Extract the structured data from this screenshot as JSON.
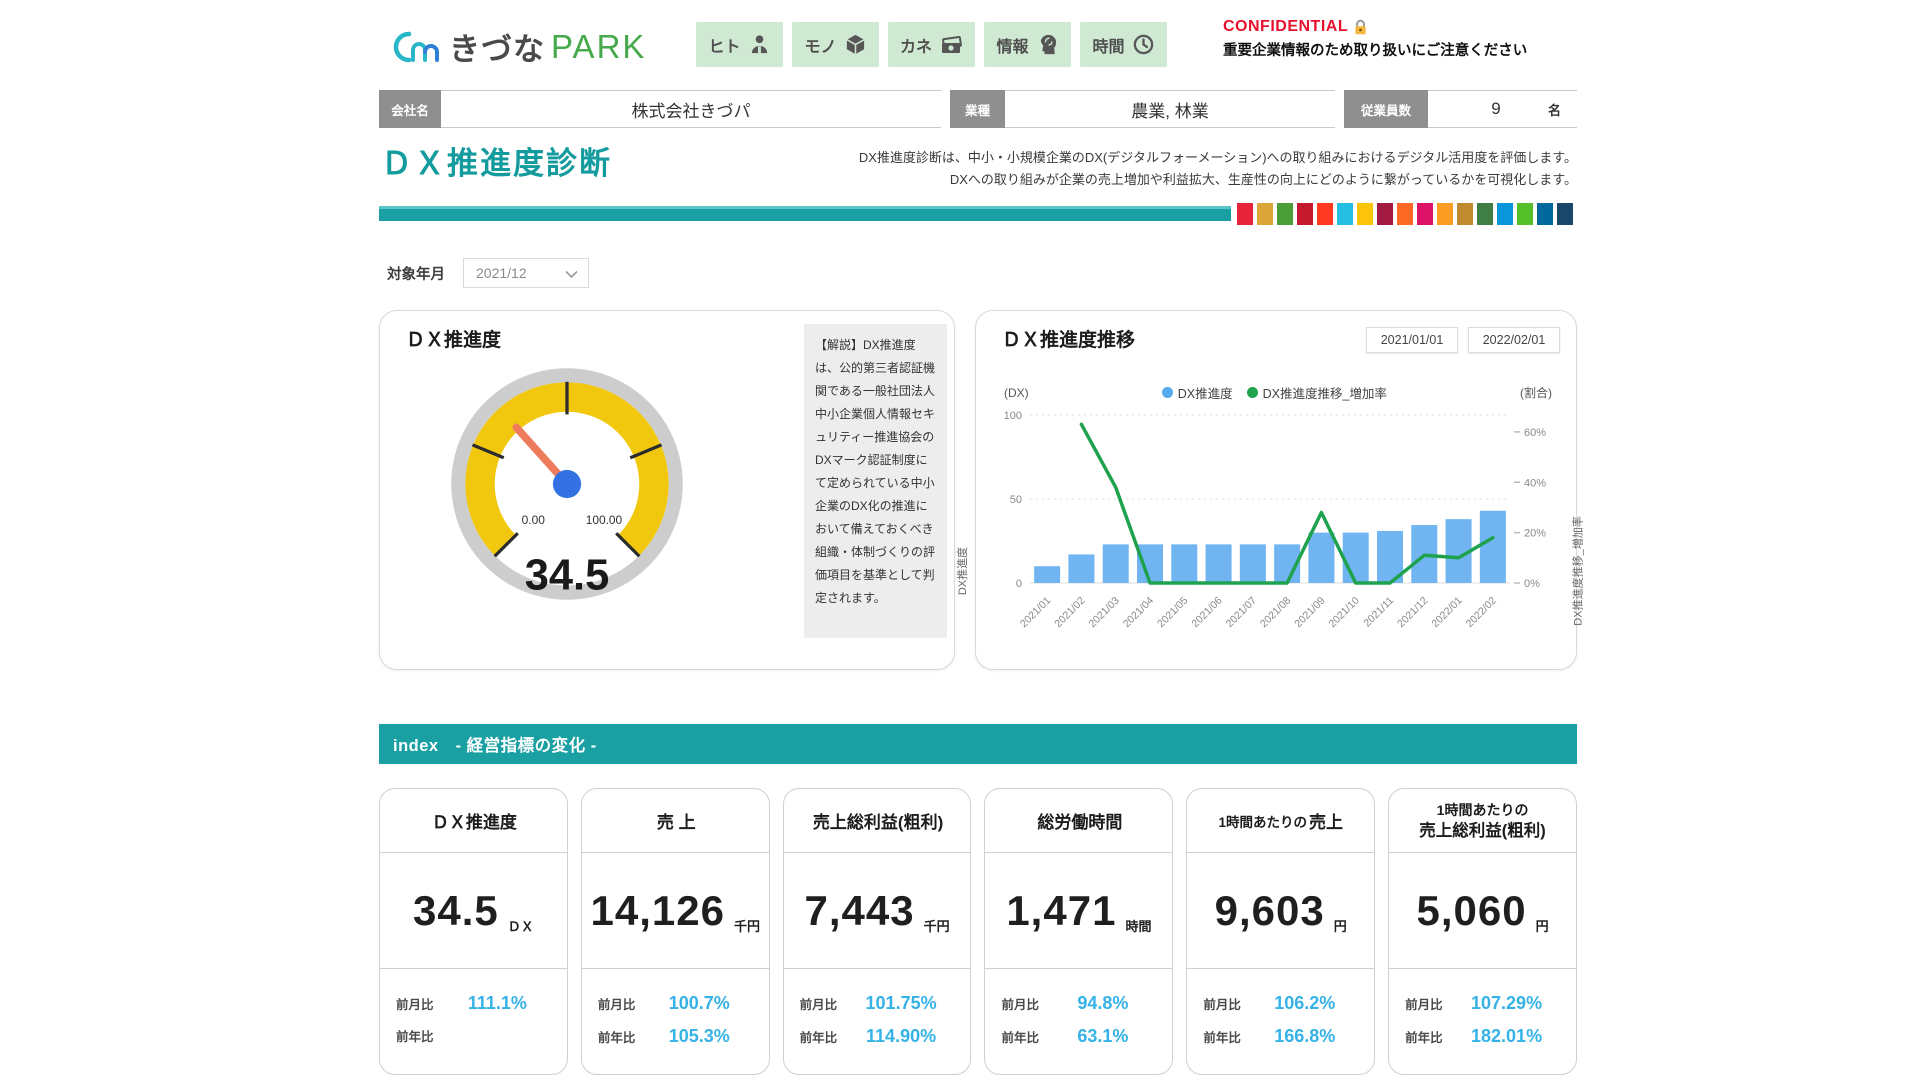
{
  "header": {
    "logo_kizuna": "きづな",
    "logo_park": "PARK",
    "nav_buttons": [
      {
        "label": "ヒト"
      },
      {
        "label": "モノ"
      },
      {
        "label": "カネ"
      },
      {
        "label": "情報"
      },
      {
        "label": "時間"
      }
    ],
    "confidential_title": "CONFIDENTIAL",
    "confidential_note": "重要企業情報のため取り扱いにご注意ください"
  },
  "company_bar": {
    "company_label": "会社名",
    "company_value": "株式会社きづパ",
    "industry_label": "業種",
    "industry_value": "農業, 林業",
    "employees_label": "従業員数",
    "employees_value": "9",
    "employees_unit": "名"
  },
  "page": {
    "title": "ＤＸ推進度診断",
    "description_line1": "DX推進度診断は、中小・小規模企業のDX(デジタルフォーメーション)への取り組みにおけるデジタル活用度を評価します。",
    "description_line2": "DXへの取り組みが企業の売上増加や利益拡大、生産性の向上にどのように繋がっているかを可視化します。"
  },
  "filter": {
    "label": "対象年月",
    "value": "2021/12"
  },
  "gauge_card": {
    "title": "ＤＸ推進度",
    "min": "0.00",
    "max": "100.00",
    "value": "34.5",
    "explanation": "【解説】DX推進度は、公的第三者認証機関である一般社団法人中小企業個人情報セキュリティー推進協会のDXマーク認証制度にて定められている中小企業のDX化の推進において備えておくべき組織・体制づくりの評価項目を基準として判定されます。"
  },
  "trend_card": {
    "title": "ＤＸ推進度推移",
    "date_from": "2021/01/01",
    "date_to": "2022/02/01",
    "left_axis_unit": "(DX)",
    "right_axis_unit": "(割合)",
    "left_axis_title": "DX推進度",
    "right_axis_title": "DX推進度推移_増加率"
  },
  "chart_data": {
    "type": "combo",
    "title": "ＤＸ推進度推移",
    "categories": [
      "2021/01",
      "2021/02",
      "2021/03",
      "2021/04",
      "2021/05",
      "2021/06",
      "2021/07",
      "2021/08",
      "2021/09",
      "2021/10",
      "2021/11",
      "2021/12",
      "2022/01",
      "2022/02"
    ],
    "series": [
      {
        "name": "DX推進度",
        "type": "bar",
        "axis": "left",
        "color": "#70b5f1",
        "values": [
          10,
          17,
          23,
          23,
          23,
          23,
          23,
          23,
          30,
          30,
          31,
          34.5,
          38,
          43
        ]
      },
      {
        "name": "DX推進度推移_増加率",
        "type": "line",
        "axis": "right",
        "color": "#1ea24e",
        "values_percent": [
          null,
          63,
          38,
          0,
          0,
          0,
          0,
          0,
          28,
          0,
          0,
          11,
          10,
          18
        ]
      }
    ],
    "left_axis": {
      "ticks": [
        0,
        50,
        100
      ],
      "min": 0,
      "max": 100
    },
    "right_axis": {
      "ticks_percent": [
        0,
        20,
        40,
        60
      ],
      "min_percent": 0,
      "max_percent": 66.7
    },
    "legend_position": "top",
    "grid": "dotted horizontal"
  },
  "index_section": {
    "title": "index　- 経営指標の変化 -",
    "mom_label": "前月比",
    "yoy_label": "前年比",
    "cards": [
      {
        "name_small": "",
        "name": "ＤＸ推進度",
        "value": "34.5",
        "unit": "ＤＸ",
        "mom": "111.1%",
        "yoy": ""
      },
      {
        "name_small": "",
        "name": "売 上",
        "value": "14,126",
        "unit": "千円",
        "mom": "100.7%",
        "yoy": "105.3%"
      },
      {
        "name_small": "",
        "name": "売上総利益(粗利)",
        "value": "7,443",
        "unit": "千円",
        "mom": "101.75%",
        "yoy": "114.90%"
      },
      {
        "name_small": "",
        "name": "総労働時間",
        "value": "1,471",
        "unit": "時間",
        "mom": "94.8%",
        "yoy": "63.1%"
      },
      {
        "name_small": "1時間あたりの",
        "name": "売上",
        "value": "9,603",
        "unit": "円",
        "mom": "106.2%",
        "yoy": "166.8%"
      },
      {
        "name_small": "1時間あたりの",
        "name": "売上総利益(粗利)",
        "value": "5,060",
        "unit": "円",
        "mom": "107.29%",
        "yoy": "182.01%"
      }
    ]
  },
  "sdg_colors": [
    "#e5243b",
    "#dda63a",
    "#4c9f38",
    "#c5192d",
    "#ff3a21",
    "#26bde2",
    "#fcc30b",
    "#a21942",
    "#fd6925",
    "#dd1367",
    "#fd9d24",
    "#bf8b2e",
    "#3f7e44",
    "#0a97d9",
    "#56c02b",
    "#00689d",
    "#19486a"
  ],
  "ui_colors": {
    "teal": "#1aa0a2",
    "percent_blue": "#35b2e6",
    "bar_blue": "#70b5f1",
    "line_green": "#1ea24e",
    "gauge_yellow": "#f2c80f",
    "needle_salmon": "#ee7c5c",
    "hub_blue": "#3472e4"
  }
}
